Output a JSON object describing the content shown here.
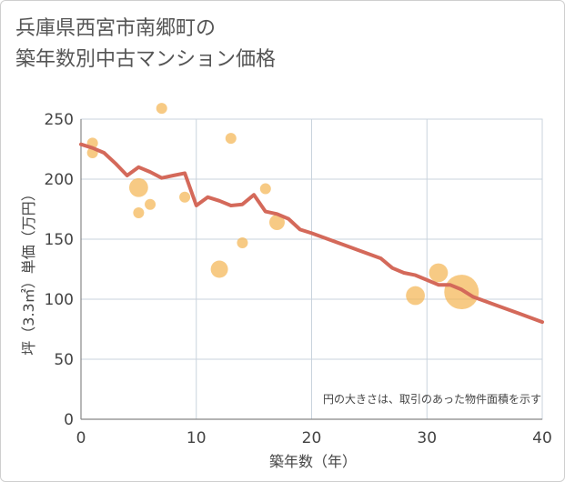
{
  "title_line1": "兵庫県西宮市南郷町の",
  "title_line2": "築年数別中古マンション価格",
  "colors": {
    "bubble": "#f4b450",
    "line": "#d4695a",
    "grid": "#c9d3dd",
    "frame": "#cfcfcf",
    "text": "#444444"
  },
  "chart_data": {
    "type": "scatter",
    "xlabel": "築年数（年）",
    "ylabel": "坪（3.3㎡）単価（万円）",
    "xlim": [
      0,
      40
    ],
    "ylim": [
      0,
      250
    ],
    "xticks": [
      0,
      10,
      20,
      30,
      40
    ],
    "yticks": [
      0,
      50,
      100,
      150,
      200,
      250
    ],
    "grid": true,
    "note": "円の大きさは、取引のあった物件面積を示す",
    "bubbles": [
      {
        "x": 1,
        "y": 230,
        "size": 1
      },
      {
        "x": 1,
        "y": 222,
        "size": 1
      },
      {
        "x": 5,
        "y": 193,
        "size": 3
      },
      {
        "x": 5,
        "y": 172,
        "size": 1
      },
      {
        "x": 6,
        "y": 179,
        "size": 1
      },
      {
        "x": 7,
        "y": 259,
        "size": 1
      },
      {
        "x": 9,
        "y": 185,
        "size": 1
      },
      {
        "x": 12,
        "y": 125,
        "size": 2.5
      },
      {
        "x": 13,
        "y": 234,
        "size": 1
      },
      {
        "x": 14,
        "y": 147,
        "size": 1
      },
      {
        "x": 16,
        "y": 192,
        "size": 1
      },
      {
        "x": 17,
        "y": 164,
        "size": 2
      },
      {
        "x": 29,
        "y": 103,
        "size": 3
      },
      {
        "x": 31,
        "y": 122,
        "size": 3
      },
      {
        "x": 33,
        "y": 106,
        "size": 10
      }
    ],
    "trend": [
      {
        "x": 0,
        "y": 229
      },
      {
        "x": 1,
        "y": 226
      },
      {
        "x": 2,
        "y": 222
      },
      {
        "x": 3,
        "y": 213
      },
      {
        "x": 4,
        "y": 203
      },
      {
        "x": 5,
        "y": 210
      },
      {
        "x": 6,
        "y": 206
      },
      {
        "x": 7,
        "y": 201
      },
      {
        "x": 8,
        "y": 203
      },
      {
        "x": 9,
        "y": 205
      },
      {
        "x": 10,
        "y": 178
      },
      {
        "x": 11,
        "y": 185
      },
      {
        "x": 12,
        "y": 182
      },
      {
        "x": 13,
        "y": 178
      },
      {
        "x": 14,
        "y": 179
      },
      {
        "x": 15,
        "y": 187
      },
      {
        "x": 16,
        "y": 173
      },
      {
        "x": 17,
        "y": 171
      },
      {
        "x": 18,
        "y": 167
      },
      {
        "x": 19,
        "y": 158
      },
      {
        "x": 20,
        "y": 155
      },
      {
        "x": 22,
        "y": 148
      },
      {
        "x": 24,
        "y": 141
      },
      {
        "x": 26,
        "y": 134
      },
      {
        "x": 27,
        "y": 126
      },
      {
        "x": 28,
        "y": 122
      },
      {
        "x": 29,
        "y": 120
      },
      {
        "x": 30,
        "y": 116
      },
      {
        "x": 31,
        "y": 112
      },
      {
        "x": 32,
        "y": 112
      },
      {
        "x": 33,
        "y": 108
      },
      {
        "x": 34,
        "y": 102
      },
      {
        "x": 36,
        "y": 95
      },
      {
        "x": 38,
        "y": 88
      },
      {
        "x": 40,
        "y": 81
      }
    ]
  }
}
